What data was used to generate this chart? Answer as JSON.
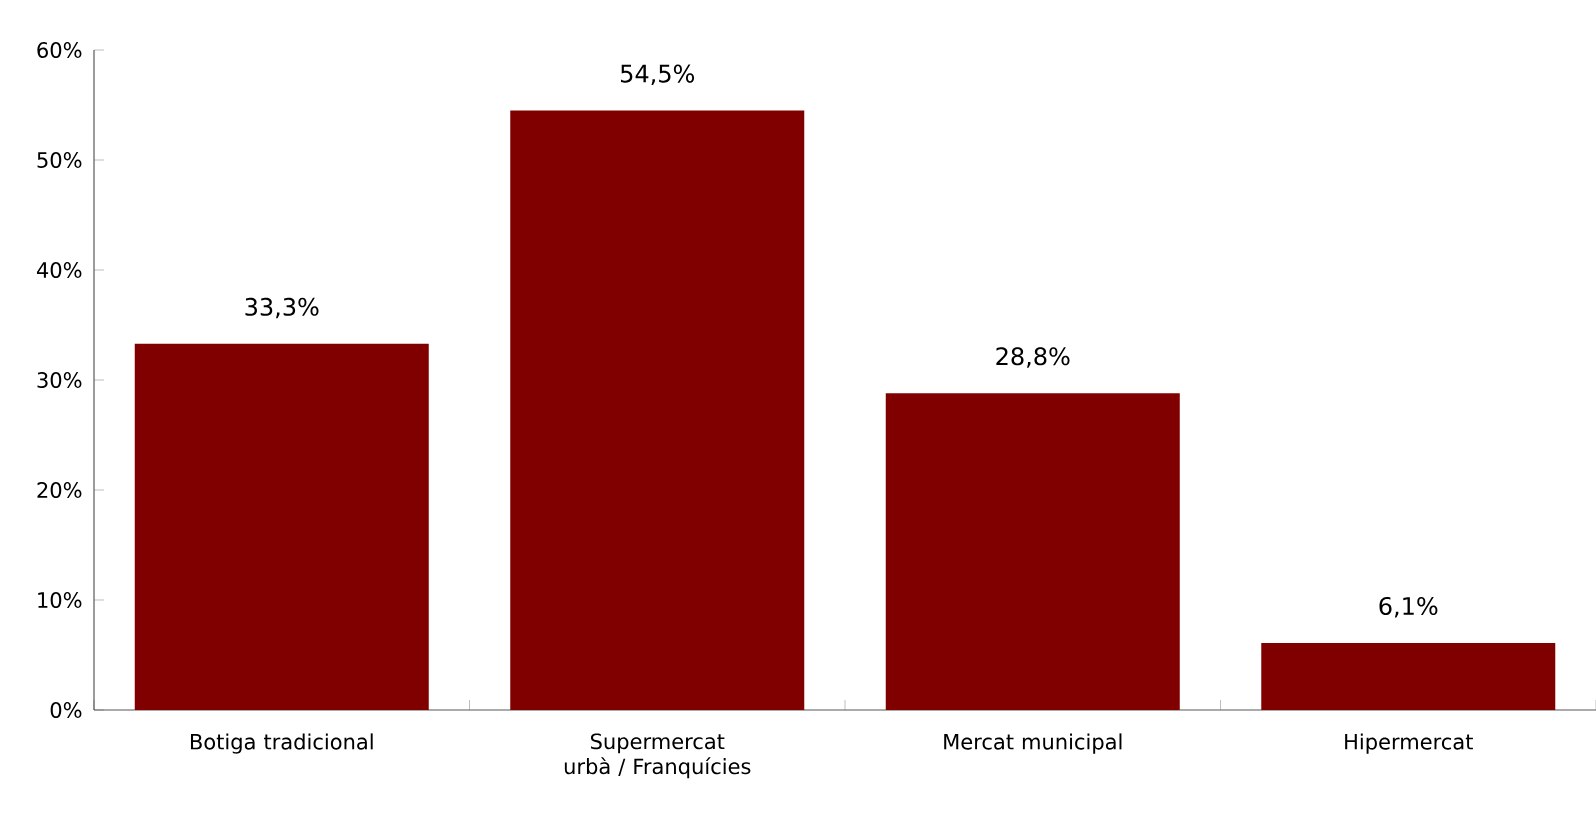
{
  "chart_data": {
    "type": "bar",
    "categories": [
      "Botiga tradicional",
      "Supermercat urbà / Franquícies",
      "Mercat municipal",
      "Hipermercat"
    ],
    "values": [
      33.3,
      54.5,
      28.8,
      6.1
    ],
    "value_labels": [
      "33,3%",
      "54,5%",
      "28,8%",
      "6,1%"
    ],
    "color": "#800000",
    "ylim": [
      0,
      60
    ],
    "yticks": [
      {
        "value": 0,
        "label": "0%"
      },
      {
        "value": 10,
        "label": "10%"
      },
      {
        "value": 20,
        "label": "20%"
      },
      {
        "value": 30,
        "label": "30%"
      },
      {
        "value": 40,
        "label": "40%"
      },
      {
        "value": 50,
        "label": "50%"
      },
      {
        "value": 60,
        "label": "60%"
      }
    ],
    "grid": false
  }
}
